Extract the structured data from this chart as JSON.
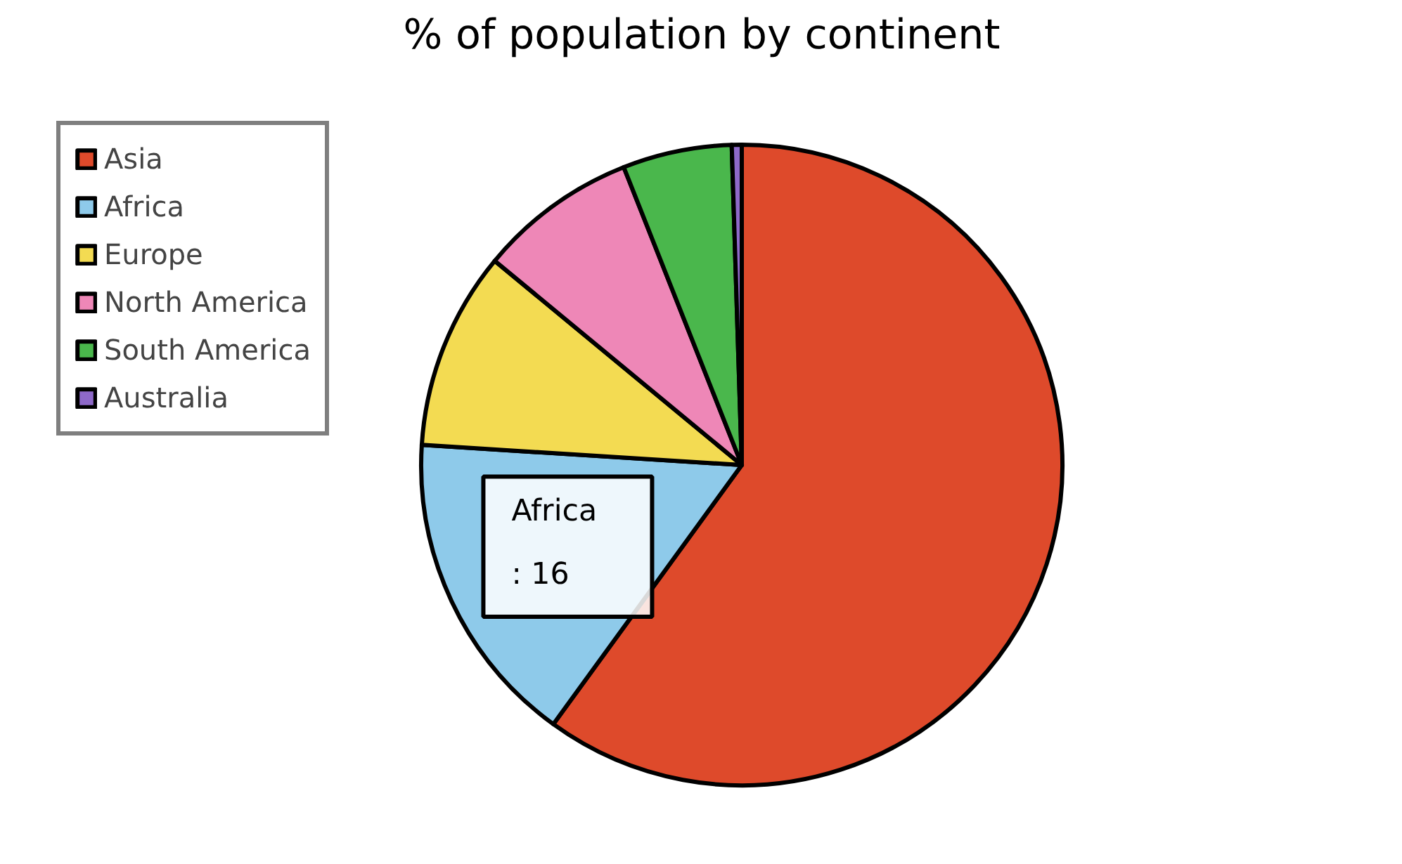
{
  "chart_data": {
    "type": "pie",
    "title": "% of population by continent",
    "categories": [
      "Asia",
      "Africa",
      "Europe",
      "North America",
      "South America",
      "Australia"
    ],
    "values": [
      60,
      16,
      10,
      8,
      5.5,
      0.5
    ],
    "colors": [
      "#de4a2b",
      "#8ecaea",
      "#f3db52",
      "#ee87b7",
      "#4ab74c",
      "#8e69c9"
    ],
    "value_labels": [
      null,
      ": 16",
      null,
      null,
      null,
      null
    ],
    "legend": "top left"
  }
}
